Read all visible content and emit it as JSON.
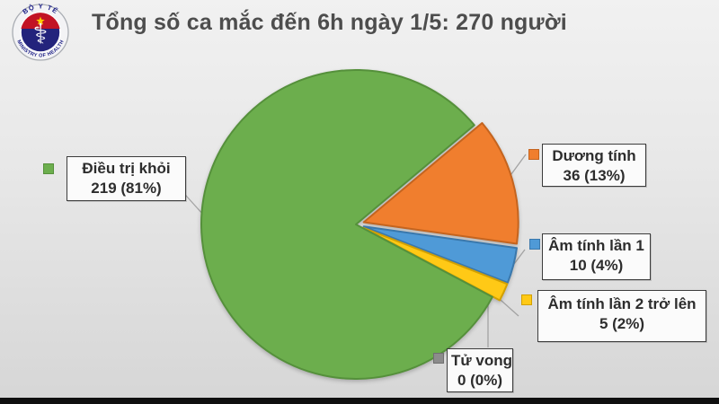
{
  "title": "Tổng số ca mắc đến 6h ngày 1/5: 270 người",
  "logo": {
    "name": "vietnam-ministry-of-health-emblem",
    "arc_top": "BỘ Y TẾ",
    "arc_bottom": "MINISTRY OF HEALTH",
    "symbol": "rod-of-asclepius",
    "colors": {
      "navy": "#23237C",
      "red": "#C21325",
      "star": "#FFCC00",
      "ring": "#F3F3F5"
    }
  },
  "chart_data": {
    "type": "pie",
    "title": "Tổng số ca mắc đến 6h ngày 1/5: 270 người",
    "total": 270,
    "total_text": "270 người",
    "legend_position": "callout-labels",
    "slices": [
      {
        "key": "dieu-tri-khoi",
        "label": "Điều trị khỏi",
        "value": 219,
        "pct": 81,
        "value_text": "219 (81%)",
        "color": "#6CAE4D",
        "border": "#55903B"
      },
      {
        "key": "duong-tinh",
        "label": "Dương tính",
        "value": 36,
        "pct": 13,
        "value_text": "36 (13%)",
        "color": "#F07E2E",
        "border": "#C4641F"
      },
      {
        "key": "am-tinh-lan-1",
        "label": "Âm tính lần 1",
        "value": 10,
        "pct": 4,
        "value_text": "10 (4%)",
        "color": "#4F9AD7",
        "border": "#3A78AC"
      },
      {
        "key": "am-tinh-lan-2",
        "label": "Âm tính lần 2 trở lên",
        "value": 5,
        "pct": 2,
        "value_text": "5 (2%)",
        "color": "#FFC916",
        "border": "#D2A000"
      },
      {
        "key": "tu-vong",
        "label": "Tử vong",
        "value": 0,
        "pct": 0,
        "value_text": "0 (0%)",
        "color": "#8C8C8C",
        "border": "#6F6F6F"
      }
    ]
  }
}
